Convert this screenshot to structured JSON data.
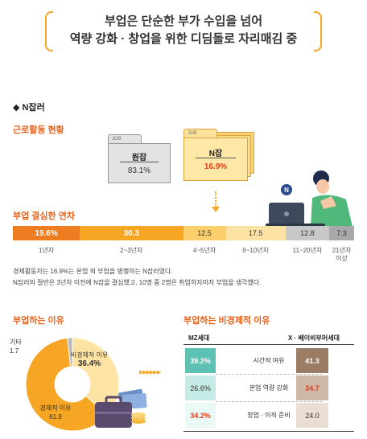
{
  "headline": {
    "line1": "부업은 단순한 부가 수입을 넘어",
    "line2": "역량 강화 · 창업을 위한 디딤돌로 자리매김 중"
  },
  "section_title": "◆ N잡러",
  "employment": {
    "title": "근로활동 현황",
    "folders": [
      {
        "tab": "JOB",
        "label": "원잡",
        "value": "83.1%"
      },
      {
        "tab": "JOB",
        "label": "N잡",
        "value": "16.9%"
      }
    ],
    "badge": "N"
  },
  "years": {
    "title": "부업 결심한 연차"
  },
  "notes": [
    "경제활동자는 16.9%는 본업 외 부업을 병행하는 N잡러였다.",
    "N잡러의 절반은 3년차 이전에 N잡을 결심했고, 10명 중 2명은 취업하자마자 부업을 생각했다."
  ],
  "reasons": {
    "title": "부업하는 이유"
  },
  "noneco": {
    "title": "부업하는 비경제적 이유",
    "left_header": "MZ세대",
    "right_header": "X · 베이비부머세대"
  },
  "chart_data": [
    {
      "type": "bar",
      "stacked": true,
      "orientation": "horizontal",
      "title": "부업 결심한 연차",
      "categories": [
        "1년차",
        "2~3년차",
        "4~5년차",
        "6~10년차",
        "11~20년차",
        "21년차 이상"
      ],
      "values": [
        19.6,
        30.3,
        12.5,
        17.5,
        12.8,
        7.3
      ],
      "value_labels": [
        "19.6%",
        "30.3",
        "12.5",
        "17.5",
        "12.8",
        "7.3"
      ],
      "colors": [
        "#ee7d22",
        "#f6a623",
        "#fbce6c",
        "#fde3a3",
        "#c8c8c8",
        "#a9a9a9"
      ]
    },
    {
      "type": "pie",
      "title": "부업하는 이유",
      "labels": [
        "경제적 이유",
        "비경제적 이유",
        "기타"
      ],
      "values": [
        61.9,
        36.4,
        1.7
      ],
      "value_labels": [
        "61.9",
        "36.4%",
        "1.7"
      ],
      "colors": [
        "#f6a623",
        "#fde4a4",
        "#b9b9b9"
      ]
    },
    {
      "type": "table",
      "title": "부업하는 비경제적 이유",
      "columns": [
        "MZ세대",
        "X · 베이비부머세대"
      ],
      "rows": [
        {
          "label": "시간적 여유",
          "mz": "39.2%",
          "xb": "41.3"
        },
        {
          "label": "본업 역량 강화",
          "mz": "26.6%",
          "xb": "34.7"
        },
        {
          "label": "창업 · 이직 준비",
          "mz": "34.2%",
          "xb": "24.0"
        }
      ],
      "mz_colors": [
        "#5dc2b4",
        "#c6ebe6",
        "#eaf8f6"
      ],
      "xb_colors": [
        "#9b7c65",
        "#cdb8a7",
        "#ebdfd4"
      ]
    }
  ]
}
